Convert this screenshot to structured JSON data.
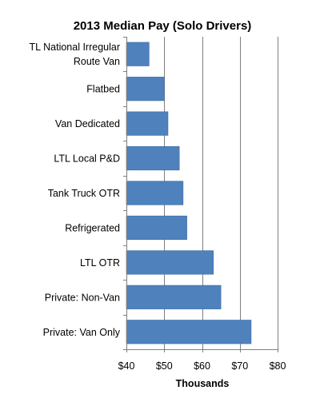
{
  "chart_data": {
    "type": "bar",
    "orientation": "horizontal",
    "title": "2013 Median Pay (Solo Drivers)",
    "xlabel": "Thousands",
    "ylabel": "",
    "categories": [
      "TL National Irregular Route Van",
      "Flatbed",
      "Van Dedicated",
      "LTL Local P&D",
      "Tank Truck OTR",
      "Refrigerated",
      "LTL OTR",
      "Private: Non-Van",
      "Private: Van Only"
    ],
    "category_label_lines": [
      [
        "TL National Irregular",
        "Route Van"
      ],
      [
        "Flatbed"
      ],
      [
        "Van Dedicated"
      ],
      [
        "LTL Local P&D"
      ],
      [
        "Tank Truck OTR"
      ],
      [
        "Refrigerated"
      ],
      [
        "LTL OTR"
      ],
      [
        "Private: Non-Van"
      ],
      [
        "Private: Van Only"
      ]
    ],
    "values": [
      46,
      50,
      51,
      54,
      55,
      56,
      63,
      65,
      73
    ],
    "xlim": [
      40,
      80
    ],
    "x_ticks": [
      40,
      50,
      60,
      70,
      80
    ],
    "x_tick_labels": [
      "$40",
      "$50",
      "$60",
      "$70",
      "$80"
    ],
    "grid": "vertical",
    "legend": "none",
    "bar_color": "#4f81bd",
    "bar_stroke": "#3a6ba5",
    "grid_color": "#7f7f7f"
  }
}
